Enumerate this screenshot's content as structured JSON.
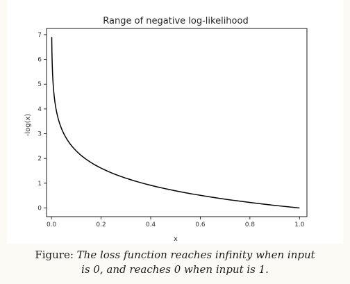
{
  "chart_data": {
    "type": "line",
    "title": "Range of negative log-likelihood",
    "xlabel": "x",
    "ylabel": "-log(x)",
    "xlim": [
      -0.02,
      1.03
    ],
    "ylim": [
      -0.35,
      7.25
    ],
    "x_ticks": [
      0.0,
      0.2,
      0.4,
      0.6,
      0.8,
      1.0
    ],
    "x_tick_labels": [
      "0.0",
      "0.2",
      "0.4",
      "0.6",
      "0.8",
      "1.0"
    ],
    "y_ticks": [
      0,
      1,
      2,
      3,
      4,
      5,
      6,
      7
    ],
    "y_tick_labels": [
      "0",
      "1",
      "2",
      "3",
      "4",
      "5",
      "6",
      "7"
    ],
    "grid": false,
    "series": [
      {
        "function": "-log(x)",
        "x_range": [
          0.001,
          1.0
        ],
        "color": "#000000",
        "x": [
          0.001,
          0.002,
          0.005,
          0.01,
          0.02,
          0.05,
          0.1,
          0.15,
          0.2,
          0.3,
          0.4,
          0.5,
          0.6,
          0.7,
          0.8,
          0.9,
          1.0
        ],
        "y": [
          6.91,
          6.21,
          5.3,
          4.61,
          3.91,
          3.0,
          2.3,
          1.9,
          1.61,
          1.2,
          0.92,
          0.69,
          0.51,
          0.36,
          0.22,
          0.11,
          0.0
        ]
      }
    ]
  },
  "caption": {
    "prefix": "Figure:",
    "line1": "The loss function reaches infinity when input",
    "line2": "is 0, and reaches 0 when input is 1."
  }
}
